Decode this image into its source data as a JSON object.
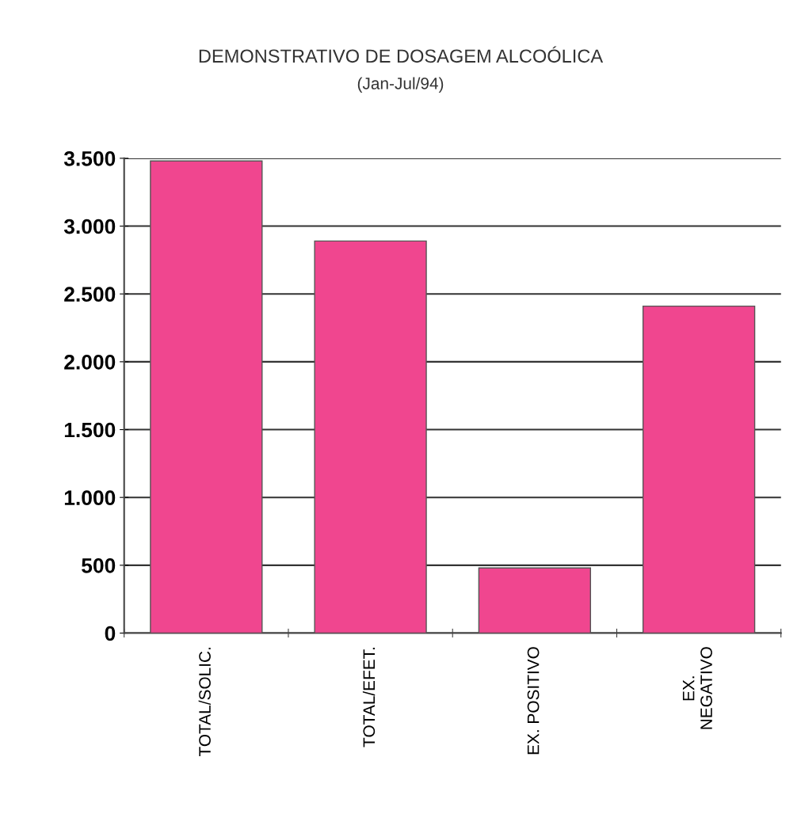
{
  "chart_data": {
    "type": "bar",
    "title": "DEMONSTRATIVO DE DOSAGEM ALCOÓLICA",
    "subtitle": "(Jan-Jul/94)",
    "categories": [
      "TOTAL/SOLIC.",
      "TOTAL/EFET.",
      "EX. POSITIVO",
      "EX.\nNEGATIVO"
    ],
    "values": [
      3480,
      2890,
      480,
      2410
    ],
    "color": "#f0468f",
    "ylim": [
      0,
      3500
    ],
    "yticks": [
      {
        "value": 0,
        "label": "0"
      },
      {
        "value": 500,
        "label": "500"
      },
      {
        "value": 1000,
        "label": "1.000"
      },
      {
        "value": 1500,
        "label": "1.500"
      },
      {
        "value": 2000,
        "label": "2.000"
      },
      {
        "value": 2500,
        "label": "2.500"
      },
      {
        "value": 3000,
        "label": "3.000"
      },
      {
        "value": 3500,
        "label": "3.500"
      }
    ],
    "grid": "y"
  }
}
